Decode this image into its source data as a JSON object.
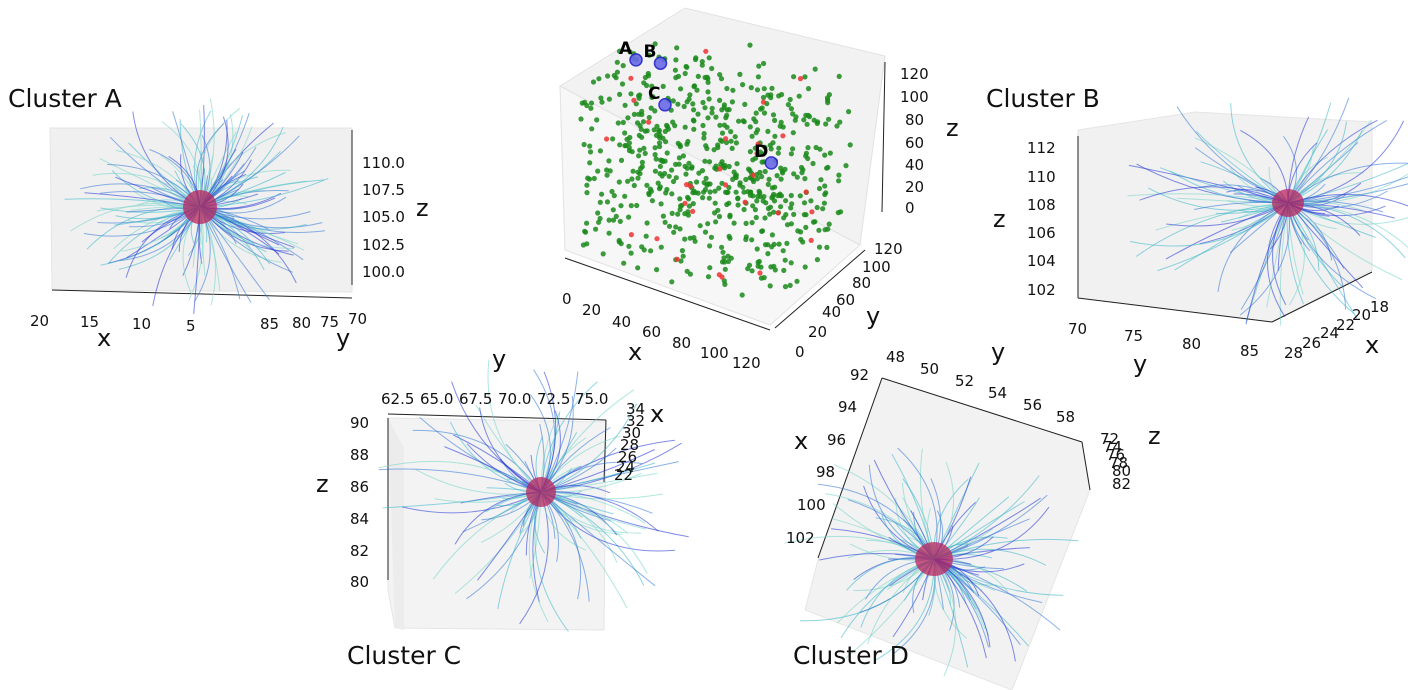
{
  "chart_data": [
    {
      "type": "scatter",
      "panel": "overview",
      "title": "",
      "xlabel": "x",
      "ylabel": "y",
      "zlabel": "z",
      "x_ticks": [
        "0",
        "20",
        "40",
        "60",
        "80",
        "100",
        "120"
      ],
      "y_ticks": [
        "0",
        "20",
        "40",
        "60",
        "80",
        "100",
        "120"
      ],
      "z_ticks": [
        "0",
        "20",
        "40",
        "60",
        "80",
        "100",
        "120"
      ],
      "xlim": [
        0,
        120
      ],
      "ylim": [
        0,
        120
      ],
      "zlim": [
        0,
        120
      ],
      "series": [
        {
          "color": "#1a8a1a",
          "count": 650
        },
        {
          "color": "#ee3333",
          "count": 30
        }
      ],
      "markers": [
        {
          "label": "A",
          "x": 10,
          "y": 78,
          "z": 105
        },
        {
          "label": "B",
          "x": 24,
          "y": 78,
          "z": 108
        },
        {
          "label": "C",
          "x": 30,
          "y": 70,
          "z": 85
        },
        {
          "label": "D",
          "x": 98,
          "y": 53,
          "z": 78
        }
      ]
    },
    {
      "type": "line",
      "panel": "cluster",
      "title": "Cluster A",
      "xlabel": "x",
      "ylabel": "y",
      "zlabel": "z",
      "x_ticks": [
        "20",
        "15",
        "10",
        "5"
      ],
      "y_ticks": [
        "85",
        "80",
        "75",
        "70"
      ],
      "z_ticks": [
        "110.0",
        "107.5",
        "105.0",
        "102.5",
        "100.0"
      ],
      "line_count": 160,
      "center_color": "#b8265e",
      "line_colors": [
        "#1c2fd6",
        "#2d73d6",
        "#35b5c9",
        "#6fd3c6"
      ]
    },
    {
      "type": "line",
      "panel": "cluster",
      "title": "Cluster B",
      "xlabel": "x",
      "ylabel": "y",
      "zlabel": "z",
      "x_ticks": [
        "28",
        "26",
        "24",
        "22",
        "20",
        "18"
      ],
      "y_ticks": [
        "70",
        "75",
        "80",
        "85"
      ],
      "z_ticks": [
        "112",
        "110",
        "108",
        "106",
        "104",
        "102"
      ],
      "line_count": 110,
      "center_color": "#b8265e",
      "line_colors": [
        "#1c2fd6",
        "#2d73d6",
        "#35b5c9",
        "#6fd3c6"
      ]
    },
    {
      "type": "line",
      "panel": "cluster",
      "title": "Cluster C",
      "xlabel": "x",
      "ylabel": "y",
      "zlabel": "z",
      "x_ticks": [
        "34",
        "32",
        "30",
        "28",
        "26",
        "24",
        "22"
      ],
      "y_ticks": [
        "62.5",
        "65.0",
        "67.5",
        "70.0",
        "72.5",
        "75.0"
      ],
      "z_ticks": [
        "90",
        "88",
        "86",
        "84",
        "82",
        "80"
      ],
      "line_count": 110,
      "center_color": "#b8265e",
      "line_colors": [
        "#1c2fd6",
        "#2d73d6",
        "#35b5c9",
        "#6fd3c6"
      ]
    },
    {
      "type": "line",
      "panel": "cluster",
      "title": "Cluster D",
      "xlabel": "x",
      "ylabel": "y",
      "zlabel": "z",
      "x_ticks": [
        "92",
        "94",
        "96",
        "98",
        "100",
        "102"
      ],
      "y_ticks": [
        "48",
        "50",
        "52",
        "54",
        "56",
        "58"
      ],
      "z_ticks": [
        "72",
        "74",
        "76",
        "78",
        "80",
        "82"
      ],
      "line_count": 120,
      "center_color": "#b8265e",
      "line_colors": [
        "#1c2fd6",
        "#2d73d6",
        "#35b5c9",
        "#6fd3c6"
      ]
    }
  ]
}
